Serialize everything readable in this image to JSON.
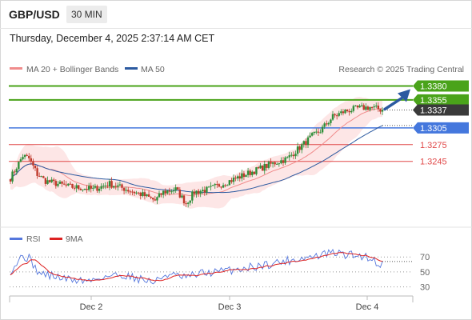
{
  "header": {
    "symbol": "GBP/USD",
    "timeframe": "30 MIN",
    "datetime": "Thursday, December 4, 2025 2:37:14 AM CET"
  },
  "colors": {
    "ma20": "#f08c8c",
    "ma50": "#2c5aa0",
    "green": "#4aa31a",
    "blue": "#4477dd",
    "red": "#e04848",
    "candle_up": "#2f8f3a",
    "candle_down": "#c0392b",
    "rsi": "#5577dd",
    "rsi_ma": "#dd2222"
  },
  "chart_data": [
    {
      "type": "candlestick",
      "legend": [
        {
          "label": "MA 20 + Bollinger Bands",
          "icon": "pink-line-icon"
        },
        {
          "label": "MA 50",
          "icon": "blue-line-icon"
        }
      ],
      "credit": "Research © 2025 Trading Central",
      "ylim": [
        1.313,
        1.3395
      ],
      "x_ticks": [
        "Dec 2",
        "Dec 3",
        "Dec 4"
      ],
      "levels": [
        {
          "value": 1.338,
          "label": "1.3380",
          "kind": "resistance"
        },
        {
          "value": 1.3355,
          "label": "1.3355",
          "kind": "resistance"
        },
        {
          "value": 1.3305,
          "label": "1.3305",
          "kind": "pivot"
        },
        {
          "value": 1.3275,
          "label": "1.3275",
          "kind": "support"
        },
        {
          "value": 1.3245,
          "label": "1.3245",
          "kind": "support"
        }
      ],
      "last_price": {
        "value": 1.3337,
        "label": "1.3337"
      },
      "keypoints": [
        [
          0,
          1.3215
        ],
        [
          6,
          1.3255
        ],
        [
          9,
          1.325
        ],
        [
          13,
          1.3222
        ],
        [
          17,
          1.321
        ],
        [
          28,
          1.32
        ],
        [
          40,
          1.3195
        ],
        [
          48,
          1.3205
        ],
        [
          56,
          1.3195
        ],
        [
          64,
          1.3185
        ],
        [
          70,
          1.3175
        ],
        [
          74,
          1.319
        ],
        [
          80,
          1.3195
        ],
        [
          85,
          1.317
        ],
        [
          89,
          1.319
        ],
        [
          96,
          1.3195
        ],
        [
          106,
          1.321
        ],
        [
          116,
          1.3225
        ],
        [
          126,
          1.324
        ],
        [
          134,
          1.325
        ],
        [
          140,
          1.327
        ],
        [
          146,
          1.329
        ],
        [
          150,
          1.33
        ],
        [
          156,
          1.3325
        ],
        [
          162,
          1.3335
        ],
        [
          168,
          1.334
        ],
        [
          174,
          1.3342
        ],
        [
          180,
          1.3337
        ]
      ]
    },
    {
      "type": "line",
      "legend": [
        {
          "label": "RSI",
          "icon": "blue-line-icon"
        },
        {
          "label": "9MA",
          "icon": "red-line-icon"
        }
      ],
      "ylim": [
        20,
        82
      ],
      "y_ticks": [
        "70",
        "50",
        "30"
      ],
      "keypoints": [
        [
          0,
          52
        ],
        [
          6,
          72
        ],
        [
          9,
          68
        ],
        [
          14,
          48
        ],
        [
          20,
          45
        ],
        [
          28,
          40
        ],
        [
          38,
          38
        ],
        [
          45,
          44
        ],
        [
          55,
          46
        ],
        [
          64,
          40
        ],
        [
          70,
          36
        ],
        [
          75,
          47
        ],
        [
          85,
          42
        ],
        [
          92,
          48
        ],
        [
          100,
          50
        ],
        [
          110,
          54
        ],
        [
          120,
          58
        ],
        [
          130,
          63
        ],
        [
          140,
          68
        ],
        [
          148,
          71
        ],
        [
          156,
          76
        ],
        [
          162,
          73
        ],
        [
          168,
          72
        ],
        [
          174,
          70
        ],
        [
          177,
          62
        ],
        [
          180,
          60
        ]
      ]
    }
  ]
}
